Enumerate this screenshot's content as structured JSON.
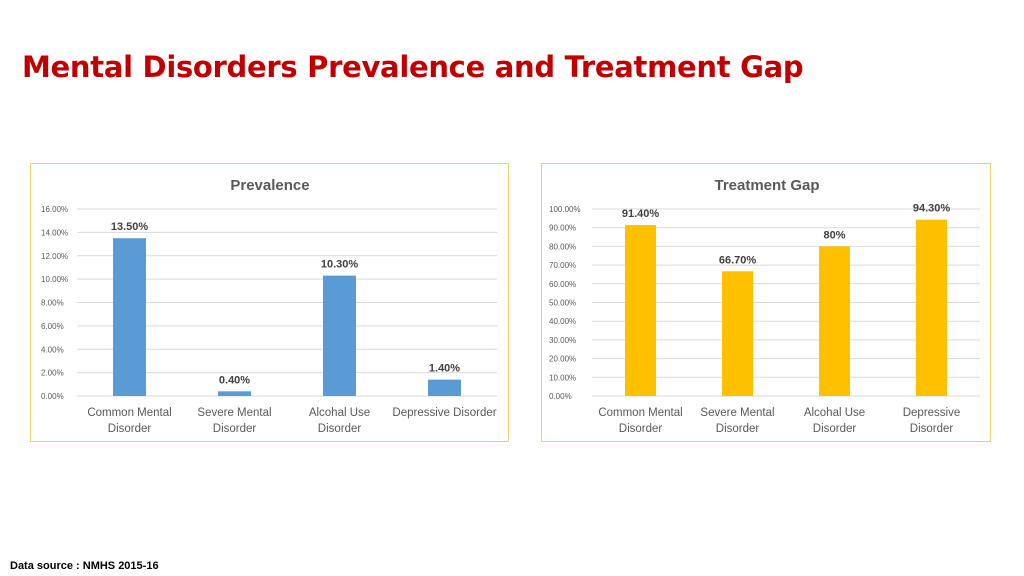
{
  "page": {
    "title": "Mental Disorders Prevalence and Treatment Gap",
    "source": "Data source : NMHS 2015-16"
  },
  "colors": {
    "title": "#c00000",
    "prevalence_bar": "#5b9bd5",
    "gap_bar": "#ffc000",
    "frame": "#f2d16a"
  },
  "chart_data": [
    {
      "type": "bar",
      "title": "Prevalence",
      "categories": [
        [
          "Common Mental",
          "Disorder"
        ],
        [
          "Severe Mental",
          "Disorder"
        ],
        [
          "Alcohal Use",
          "Disorder"
        ],
        [
          "Depressive Disorder"
        ]
      ],
      "values": [
        13.5,
        0.4,
        10.3,
        1.4
      ],
      "data_labels": [
        "13.50%",
        "0.40%",
        "10.30%",
        "1.40%"
      ],
      "ylim": [
        0,
        16
      ],
      "yticks": [
        0,
        2,
        4,
        6,
        8,
        10,
        12,
        14,
        16
      ],
      "ytick_labels": [
        "0.00%",
        "2.00%",
        "4.00%",
        "6.00%",
        "8.00%",
        "10.00%",
        "12.00%",
        "14.00%",
        "16.00%"
      ],
      "grid": true,
      "legend": "none",
      "color": "#5b9bd5"
    },
    {
      "type": "bar",
      "title": "Treatment Gap",
      "categories": [
        [
          "Common Mental",
          "Disorder"
        ],
        [
          "Severe Mental",
          "Disorder"
        ],
        [
          "Alcohal Use",
          "Disorder"
        ],
        [
          "Depressive",
          "Disorder"
        ]
      ],
      "values": [
        91.4,
        66.7,
        80,
        94.3
      ],
      "data_labels": [
        "91.40%",
        "66.70%",
        "80%",
        "94.30%"
      ],
      "ylim": [
        0,
        100
      ],
      "yticks": [
        0,
        10,
        20,
        30,
        40,
        50,
        60,
        70,
        80,
        90,
        100
      ],
      "ytick_labels": [
        "0.00%",
        "10.00%",
        "20.00%",
        "30.00%",
        "40.00%",
        "50.00%",
        "60.00%",
        "70.00%",
        "80.00%",
        "90.00%",
        "100.00%"
      ],
      "grid": true,
      "legend": "none",
      "color": "#ffc000"
    }
  ]
}
